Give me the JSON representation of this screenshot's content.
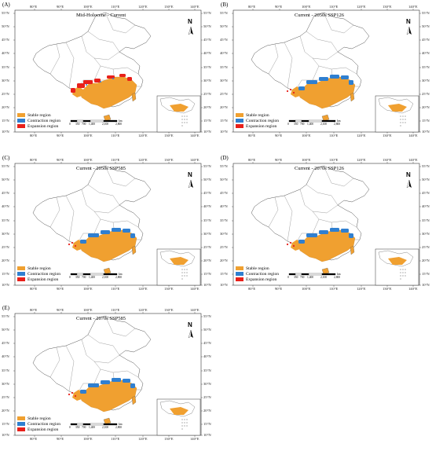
{
  "colors": {
    "stable": "#F0A030",
    "contraction": "#2F7FD0",
    "expansion": "#E8201A"
  },
  "lon_labels": [
    "80°E",
    "90°E",
    "100°E",
    "110°E",
    "120°E",
    "130°E",
    "140°E"
  ],
  "lat_labels": [
    "55°N",
    "50°N",
    "45°N",
    "40°N",
    "35°N",
    "30°N",
    "25°N",
    "20°N",
    "15°N",
    "10°N"
  ],
  "legend": {
    "stable": "Stable region",
    "contraction": "Contraction region",
    "expansion": "Expansion region"
  },
  "scale_labels": [
    "0",
    "350",
    "700",
    "1,400",
    "2,100",
    "2,800"
  ],
  "scale_unit": "km",
  "north_label": "N",
  "panels": [
    {
      "label": "(A)",
      "title": "Mid-Holocene - Current",
      "scenario": "expansion-west"
    },
    {
      "label": "(B)",
      "title": "Current - 2050s SSP126",
      "scenario": "contraction"
    },
    {
      "label": "(C)",
      "title": "Current - 2050s SSP585",
      "scenario": "contraction"
    },
    {
      "label": "(D)",
      "title": "Current - 2070s SSP126",
      "scenario": "contraction"
    },
    {
      "label": "(E)",
      "title": "Current - 2070s SSP585",
      "scenario": "contraction"
    }
  ]
}
